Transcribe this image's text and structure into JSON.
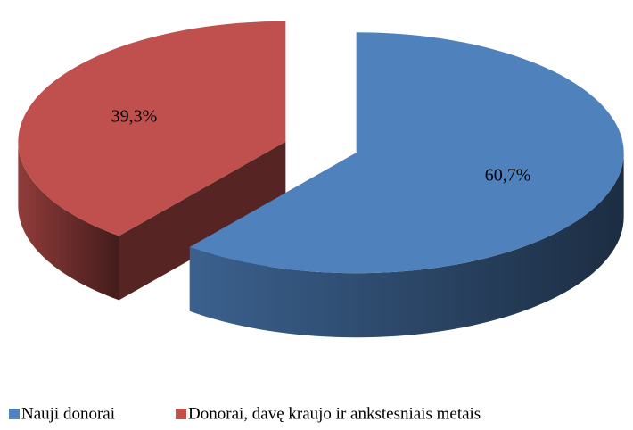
{
  "chart_data": {
    "type": "pie3d",
    "categories": [
      "Nauji donorai",
      "Donorai, davę kraujo ir ankstesniais metais"
    ],
    "values": [
      60.7,
      39.3
    ],
    "value_labels": [
      "60,7%",
      "39,3%"
    ],
    "colors": [
      "#4f81bd",
      "#c0504d"
    ],
    "legend": "bottom"
  }
}
